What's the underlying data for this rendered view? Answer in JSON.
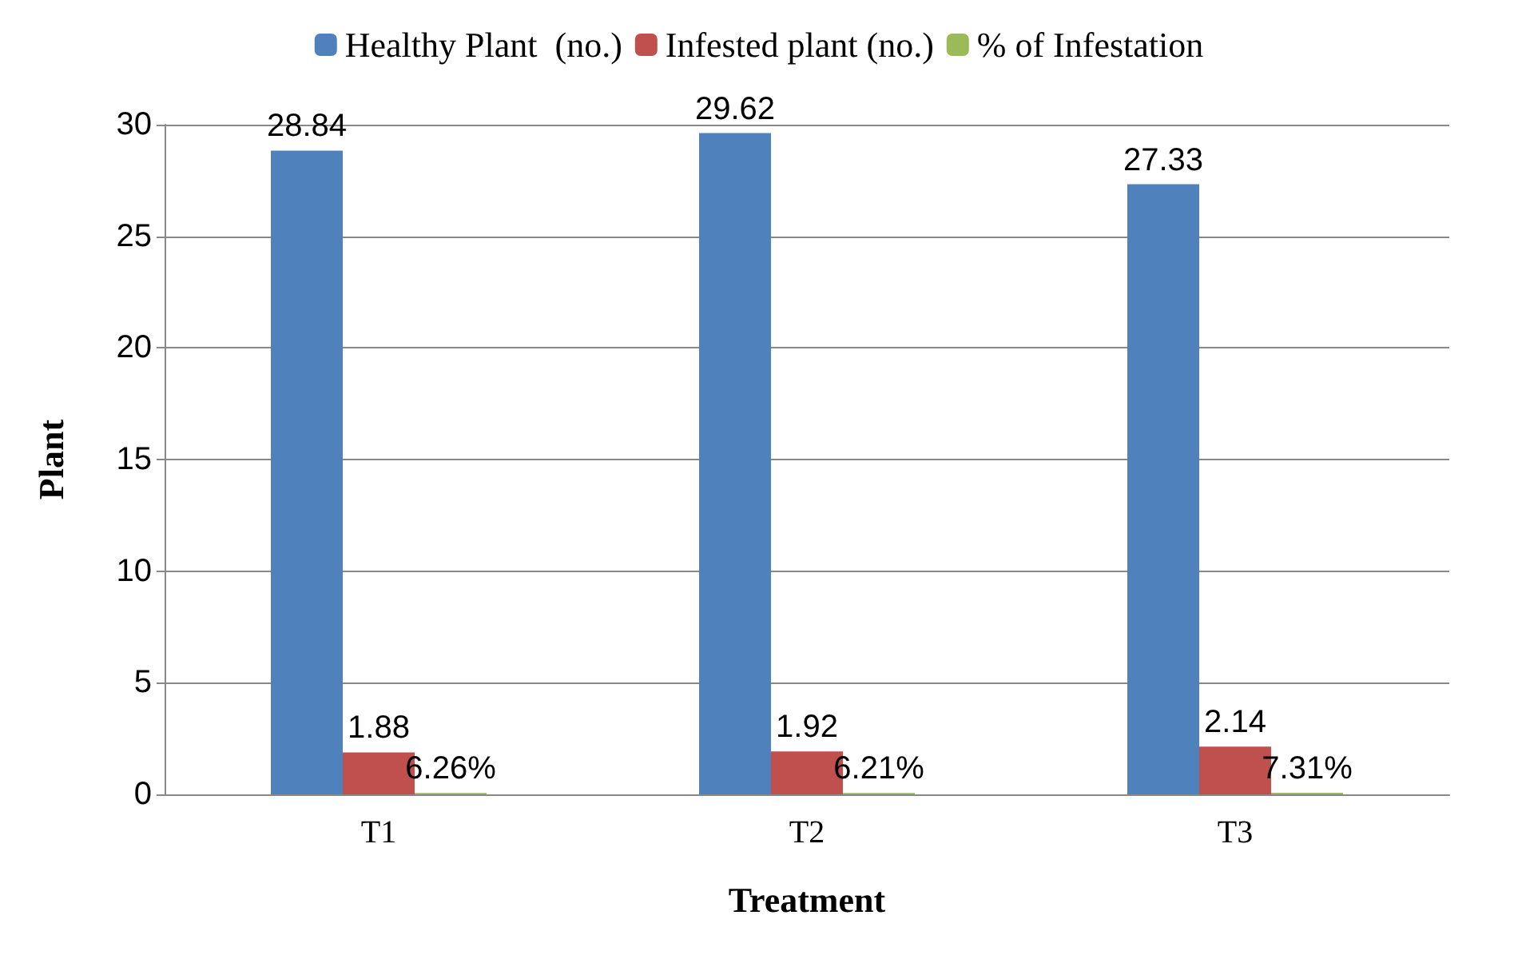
{
  "chart_data": {
    "type": "bar",
    "xlabel": "Treatment",
    "ylabel": "Plant",
    "categories": [
      "T1",
      "T2",
      "T3"
    ],
    "series": [
      {
        "name": "Healthy Plant  (no.)",
        "color": "#4f81bd",
        "values": [
          28.84,
          29.62,
          27.33
        ],
        "value_labels": [
          "28.84",
          "29.62",
          "27.33"
        ]
      },
      {
        "name": "Infested plant (no.)",
        "color": "#c0504d",
        "values": [
          1.88,
          1.92,
          2.14
        ],
        "value_labels": [
          "1.88",
          "1.92",
          "2.14"
        ]
      },
      {
        "name": "% of Infestation",
        "color": "#9bbb59",
        "values": [
          0.0626,
          0.0621,
          0.0731
        ],
        "value_labels": [
          "6.26%",
          "6.21%",
          "7.31%"
        ]
      }
    ],
    "ylim": [
      0,
      30
    ],
    "yticks": [
      0,
      5,
      10,
      15,
      20,
      25,
      30
    ],
    "grid": "y",
    "legend": "top"
  }
}
